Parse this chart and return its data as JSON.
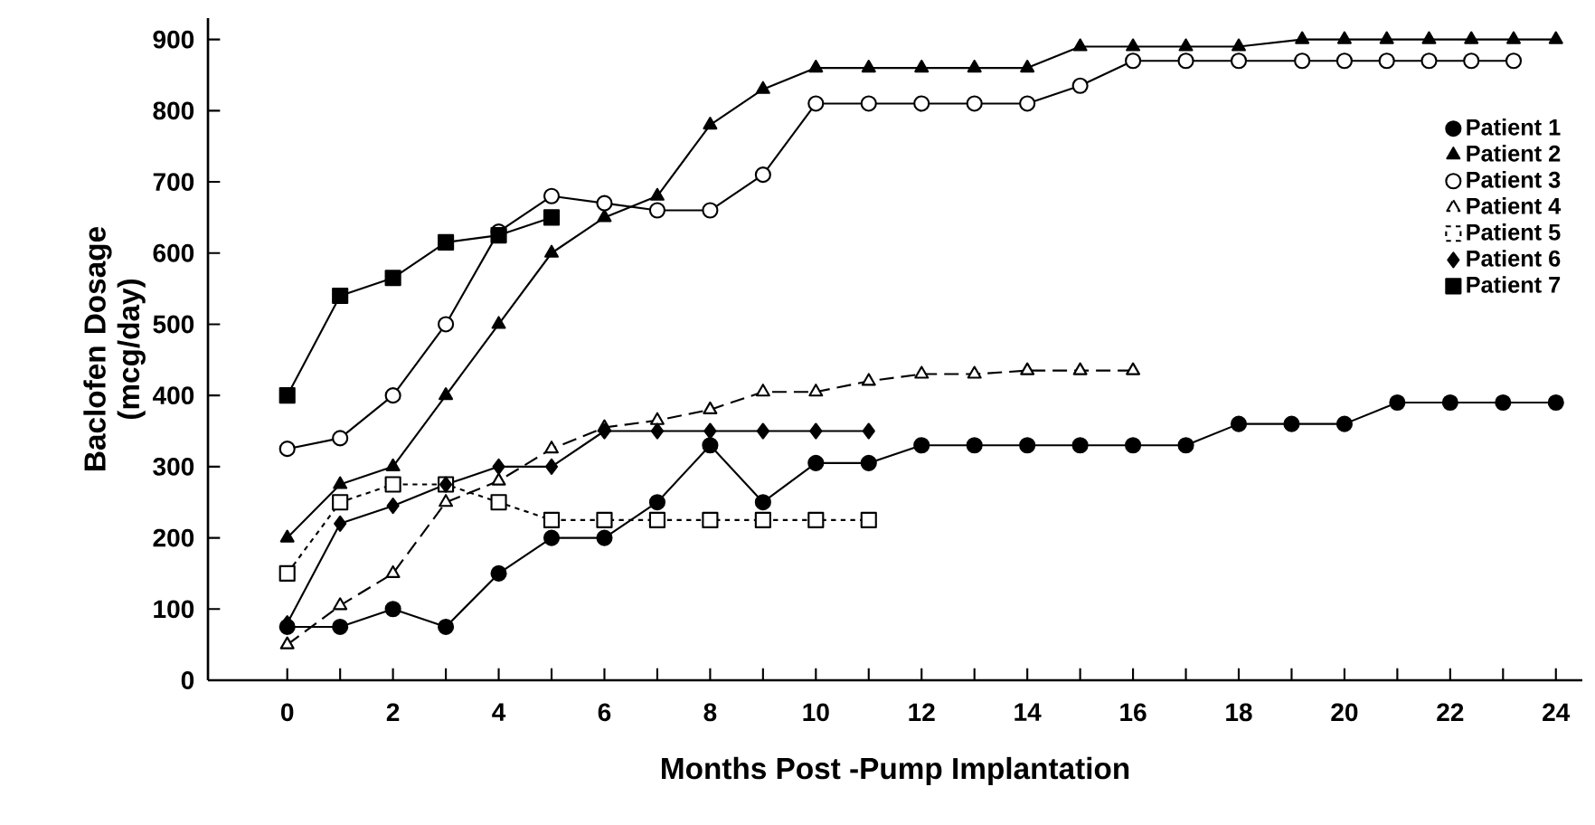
{
  "chart_data": {
    "type": "line",
    "xlabel": "Months Post -Pump Implantation",
    "ylabel": "Baclofen Dosage (mcg/day)",
    "xlim": [
      -1.5,
      24.5
    ],
    "ylim": [
      0,
      930
    ],
    "xticks": [
      0,
      {
        "value": 1,
        "label": null
      },
      2,
      {
        "value": 3,
        "label": null
      },
      4,
      {
        "value": 5,
        "label": null
      },
      6,
      {
        "value": 7,
        "label": null
      },
      8,
      {
        "value": 9,
        "label": null
      },
      10,
      {
        "value": 11,
        "label": null
      },
      12,
      {
        "value": 13,
        "label": null
      },
      14,
      {
        "value": 15,
        "label": null
      },
      16,
      {
        "value": 17,
        "label": null
      },
      18,
      {
        "value": 19,
        "label": null
      },
      20,
      {
        "value": 21,
        "label": null
      },
      22,
      {
        "value": 23,
        "label": null
      },
      24
    ],
    "yticks": [
      0,
      100,
      200,
      300,
      400,
      500,
      600,
      700,
      800,
      900
    ],
    "grid": false,
    "legend": "top right",
    "series": [
      {
        "name": "Patient 1",
        "color": "#000000",
        "marker": "circle",
        "line_style": "solid",
        "x": [
          0,
          1,
          2,
          3,
          4,
          5,
          6,
          7,
          8,
          9,
          10,
          11,
          12,
          13,
          14,
          15,
          16,
          17,
          18,
          19,
          20,
          21,
          22,
          23,
          24
        ],
        "values": [
          75,
          75,
          100,
          75,
          150,
          200,
          200,
          250,
          330,
          250,
          305,
          305,
          330,
          330,
          330,
          330,
          330,
          330,
          360,
          360,
          360,
          390,
          390,
          390,
          390
        ]
      },
      {
        "name": "Patient 2",
        "color": "#000000",
        "marker": "triangle",
        "line_style": "solid",
        "x": [
          0,
          1,
          2,
          3,
          4,
          5,
          6,
          7,
          8,
          9,
          10,
          11,
          12,
          13,
          14,
          15,
          16,
          17,
          18,
          19.2,
          20,
          20.8,
          21.6,
          22.4,
          23.2,
          24
        ],
        "values": [
          200,
          275,
          300,
          400,
          500,
          600,
          650,
          680,
          780,
          830,
          860,
          860,
          860,
          860,
          860,
          890,
          890,
          890,
          890,
          900,
          900,
          900,
          900,
          900,
          900,
          900
        ]
      },
      {
        "name": "Patient 3",
        "color": "#000000",
        "colors": [
          "#ffffff",
          "#ffffff",
          "#ffffff",
          "#ffffff",
          "#ffffff",
          "#ffffff",
          "#ffffff",
          "#ffffff",
          "#ffffff",
          "#ffffff",
          "#ffffff",
          "#ffffff",
          "#ffffff",
          "#ffffff",
          "#ffffff",
          "#ffffff",
          "#ffffff",
          "#ffffff",
          "#ffffff",
          "#ffffff",
          "#ffffff",
          "#ffffff",
          "#ffffff",
          "#ffffff",
          "#ffffff"
        ],
        "marker": "circle",
        "line_style": "solid",
        "x": [
          0,
          1,
          2,
          3,
          4,
          5,
          6,
          7,
          8,
          9,
          10,
          11,
          12,
          13,
          14,
          15,
          16,
          17,
          18,
          19.2,
          20,
          20.8,
          21.6,
          22.4,
          23.2
        ],
        "values": [
          325,
          340,
          400,
          500,
          630,
          680,
          670,
          660,
          660,
          710,
          810,
          810,
          810,
          810,
          810,
          835,
          870,
          870,
          870,
          870,
          870,
          870,
          870,
          870,
          870
        ]
      },
      {
        "name": "Patient 4",
        "color": "#000000",
        "colors": [
          "#ffffff",
          "#ffffff",
          "#ffffff",
          "#ffffff",
          "#ffffff",
          "#ffffff",
          "#ffffff",
          "#ffffff",
          "#ffffff",
          "#ffffff",
          "#ffffff",
          "#ffffff",
          "#ffffff",
          "#ffffff",
          "#ffffff",
          "#ffffff",
          "#ffffff"
        ],
        "marker": "triangle",
        "line_style": "dashed",
        "x": [
          0,
          1,
          2,
          3,
          4,
          5,
          6,
          7,
          8,
          9,
          10,
          11,
          12,
          13,
          14,
          15,
          16
        ],
        "values": [
          50,
          105,
          150,
          250,
          280,
          325,
          355,
          365,
          380,
          405,
          405,
          420,
          430,
          430,
          435,
          435,
          435
        ]
      },
      {
        "name": "Patient 5",
        "color": "#000000",
        "colors": [
          "#ffffff",
          "#ffffff",
          "#ffffff",
          "#ffffff",
          "#ffffff",
          "#ffffff",
          "#ffffff",
          "#ffffff",
          "#ffffff",
          "#ffffff",
          "#ffffff",
          "#ffffff"
        ],
        "marker": "square",
        "line_style": "dotted",
        "x": [
          0,
          1,
          2,
          3,
          4,
          5,
          6,
          7,
          8,
          9,
          10,
          11
        ],
        "values": [
          150,
          250,
          275,
          275,
          250,
          225,
          225,
          225,
          225,
          225,
          225,
          225
        ]
      },
      {
        "name": "Patient 6",
        "color": "#000000",
        "marker": "diamond",
        "line_style": "solid",
        "x": [
          0,
          1,
          2,
          3,
          4,
          5,
          6,
          7,
          8,
          9,
          10,
          11
        ],
        "values": [
          80,
          220,
          245,
          275,
          300,
          300,
          350,
          350,
          350,
          350,
          350,
          350
        ]
      },
      {
        "name": "Patient 7",
        "color": "#000000",
        "marker": "square",
        "line_style": "solid",
        "x": [
          0,
          1,
          2,
          3,
          4,
          5
        ],
        "values": [
          400,
          540,
          565,
          615,
          625,
          650
        ]
      }
    ]
  }
}
